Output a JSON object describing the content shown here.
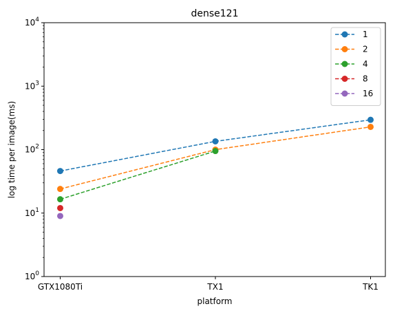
{
  "chart_data": {
    "type": "line",
    "title": "dense121",
    "xlabel": "platform",
    "ylabel": "log time per image(ms)",
    "y_scale": "log",
    "ylim": [
      1,
      10000
    ],
    "y_ticks": [
      {
        "value": 1,
        "base": "10",
        "exp": "0"
      },
      {
        "value": 10,
        "base": "10",
        "exp": "1"
      },
      {
        "value": 100,
        "base": "10",
        "exp": "2"
      },
      {
        "value": 1000,
        "base": "10",
        "exp": "3"
      },
      {
        "value": 10000,
        "base": "10",
        "exp": "4"
      }
    ],
    "categories": [
      "GTX1080Ti",
      "TX1",
      "TK1"
    ],
    "legend_position": "top-right",
    "line_style": "dashed",
    "marker": "circle",
    "series": [
      {
        "name": "1",
        "color": "#1f77b4",
        "values": [
          46,
          135,
          295
        ]
      },
      {
        "name": "2",
        "color": "#ff7f0e",
        "values": [
          24,
          100,
          228
        ]
      },
      {
        "name": "4",
        "color": "#2ca02c",
        "values": [
          16.5,
          95,
          null
        ]
      },
      {
        "name": "8",
        "color": "#d62728",
        "values": [
          12,
          null,
          null
        ]
      },
      {
        "name": "16",
        "color": "#9467bd",
        "values": [
          9,
          null,
          null
        ]
      }
    ]
  }
}
